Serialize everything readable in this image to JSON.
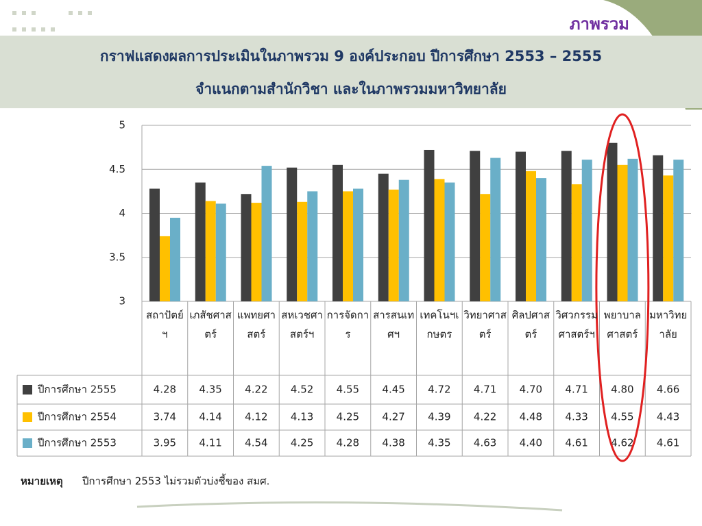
{
  "header": "ภาพรวม",
  "chart_data": {
    "type": "bar",
    "title": "กราฟแสดงผลการประเมินในภาพรวม 9 องค์ประกอบ ปีการศึกษา 2553 – 2555",
    "subtitle": "จำแนกตามสำนักวิชา และในภาพรวมมหาวิทยาลัย",
    "categories": [
      "สถาปัตย์ฯ",
      "เภสัชศาสตร์",
      "แพทยศาสตร์",
      "สหเวชศาสตร์ฯ",
      "การจัดการ",
      "สารสนเทศฯ",
      "เทคโนฯเกษตร",
      "วิทยาศาสตร์",
      "ศิลปศาสตร์",
      "วิศวกรรมศาสตร์ฯ",
      "พยาบาลศาสตร์",
      "มหาวิทยาลัย"
    ],
    "series": [
      {
        "name": "ปีการศึกษา 2555",
        "color": "#404040",
        "values": [
          4.28,
          4.35,
          4.22,
          4.52,
          4.55,
          4.45,
          4.72,
          4.71,
          4.7,
          4.71,
          4.8,
          4.66
        ],
        "value_labels": [
          "4.28",
          "4.35",
          "4.22",
          "4.52",
          "4.55",
          "4.45",
          "4.72",
          "4.71",
          "4.70",
          "4.71",
          "4.80",
          "4.66"
        ]
      },
      {
        "name": "ปีการศึกษา 2554",
        "color": "#ffc000",
        "values": [
          3.74,
          4.14,
          4.12,
          4.13,
          4.25,
          4.27,
          4.39,
          4.22,
          4.48,
          4.33,
          4.55,
          4.43
        ],
        "value_labels": [
          "3.74",
          "4.14",
          "4.12",
          "4.13",
          "4.25",
          "4.27",
          "4.39",
          "4.22",
          "4.48",
          "4.33",
          "4.55",
          "4.43"
        ]
      },
      {
        "name": "ปีการศึกษา 2553",
        "color": "#6aafc8",
        "values": [
          3.95,
          4.11,
          4.54,
          4.25,
          4.28,
          4.38,
          4.35,
          4.63,
          4.4,
          4.61,
          4.62,
          4.61
        ],
        "value_labels": [
          "3.95",
          "4.11",
          "4.54",
          "4.25",
          "4.28",
          "4.38",
          "4.35",
          "4.63",
          "4.40",
          "4.61",
          "4.62",
          "4.61"
        ]
      }
    ],
    "ylim": [
      3,
      5
    ],
    "yticks": [
      3,
      3.5,
      4,
      4.5,
      5
    ],
    "grid": true
  },
  "note": {
    "label": "หมายเหตุ",
    "text": "ปีการศึกษา 2553 ไม่รวมตัวบ่งชี้ของ สมศ."
  }
}
